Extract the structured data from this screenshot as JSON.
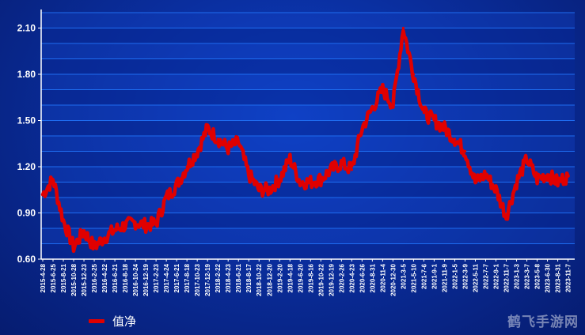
{
  "chart_data": {
    "type": "line",
    "title": "",
    "xlabel": "",
    "ylabel": "",
    "ylim": [
      0.6,
      2.2
    ],
    "yticks": [
      "0.60",
      "0.90",
      "1.20",
      "1.50",
      "1.80",
      "2.10"
    ],
    "xtick_labels": [
      "2015-4-28",
      "2015-6-25",
      "2015-8-21",
      "2015-10-28",
      "2015-12-23",
      "2016-2-25",
      "2016-4-22",
      "2016-6-21",
      "2016-8-18",
      "2016-10-24",
      "2016-12-19",
      "2017-2-23",
      "2017-4-24",
      "2017-6-21",
      "2017-8-18",
      "2017-10-23",
      "2017-12-19",
      "2018-2-22",
      "2018-4-23",
      "2018-6-21",
      "2018-8-17",
      "2018-10-22",
      "2018-12-20",
      "2019-2-20",
      "2019-4-18",
      "2019-6-20",
      "2019-8-16",
      "2019-10-22",
      "2019-12-19",
      "2020-2-26",
      "2020-4-23",
      "2020-6-26",
      "2020-8-31",
      "2020-11-4",
      "2020-12-30",
      "2021-3-5",
      "2021-5-10",
      "2021-7-6",
      "2021-9-1",
      "2021-11-9",
      "2022-1-5",
      "2022-3-9",
      "2022-5-11",
      "2022-7-7",
      "2022-9-1",
      "2022-11-7",
      "2023-1-3",
      "2023-3-7",
      "2023-5-8",
      "2023-6-30",
      "2023-8-31",
      "2023-11-7"
    ],
    "grid": true,
    "legend_position": "bottom-left",
    "series": [
      {
        "name": "值净",
        "color": "#e00000",
        "x": [
          "2015-4-28",
          "2015-6-25",
          "2015-8-21",
          "2015-10-28",
          "2015-12-23",
          "2016-2-25",
          "2016-4-22",
          "2016-6-21",
          "2016-8-18",
          "2016-10-24",
          "2016-12-19",
          "2017-2-23",
          "2017-4-24",
          "2017-6-21",
          "2017-8-18",
          "2017-10-23",
          "2017-12-19",
          "2018-2-22",
          "2018-4-23",
          "2018-6-21",
          "2018-8-17",
          "2018-10-22",
          "2018-12-20",
          "2019-2-20",
          "2019-4-18",
          "2019-6-20",
          "2019-8-16",
          "2019-10-22",
          "2019-12-19",
          "2020-2-26",
          "2020-4-23",
          "2020-6-26",
          "2020-8-31",
          "2020-11-4",
          "2020-12-30",
          "2021-3-5",
          "2021-5-10",
          "2021-7-6",
          "2021-9-1",
          "2021-11-9",
          "2022-1-5",
          "2022-3-9",
          "2022-5-11",
          "2022-7-7",
          "2022-9-1",
          "2022-11-7",
          "2023-1-3",
          "2023-3-7",
          "2023-5-8",
          "2023-6-30",
          "2023-8-31",
          "2023-11-7"
        ],
        "values": [
          1.02,
          1.12,
          0.85,
          0.68,
          0.78,
          0.68,
          0.74,
          0.79,
          0.82,
          0.84,
          0.82,
          0.83,
          1.0,
          1.08,
          1.2,
          1.3,
          1.45,
          1.38,
          1.32,
          1.36,
          1.15,
          1.05,
          1.05,
          1.12,
          1.25,
          1.1,
          1.1,
          1.12,
          1.18,
          1.22,
          1.18,
          1.45,
          1.58,
          1.7,
          1.6,
          2.1,
          1.8,
          1.55,
          1.5,
          1.45,
          1.38,
          1.3,
          1.1,
          1.15,
          1.05,
          0.88,
          1.1,
          1.25,
          1.12,
          1.15,
          1.1,
          1.14
        ]
      }
    ]
  },
  "legend": {
    "label": "值净"
  },
  "watermark": {
    "text": "鹤飞手游网"
  }
}
